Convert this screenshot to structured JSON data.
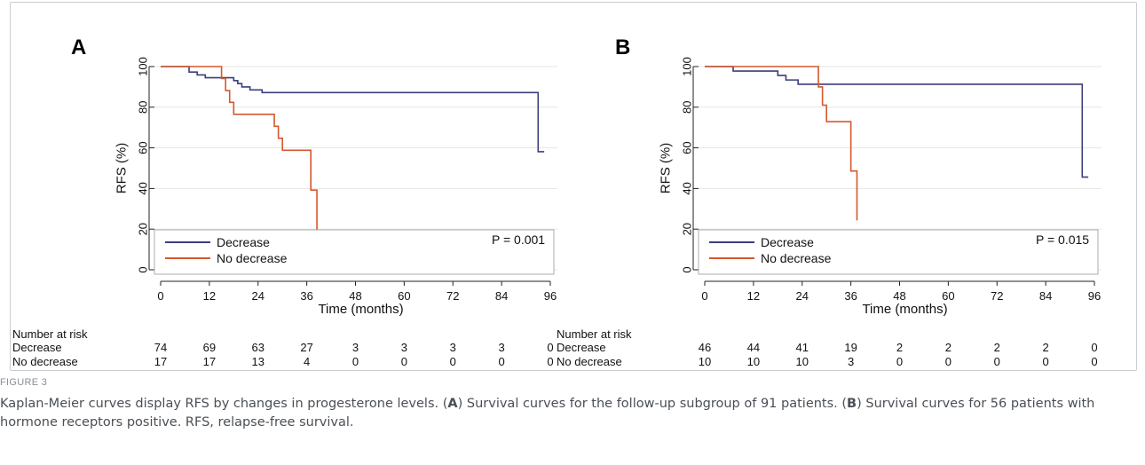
{
  "chart_data": [
    {
      "type": "line",
      "panel_label": "A",
      "ylabel": "RFS (%)",
      "xlabel": "Time (months)",
      "xlim": [
        0,
        96
      ],
      "ylim": [
        0,
        100
      ],
      "xticks": [
        "0",
        "12",
        "24",
        "36",
        "48",
        "60",
        "72",
        "84",
        "96"
      ],
      "yticks": [
        "0",
        "20",
        "40",
        "60",
        "80",
        "100"
      ],
      "grid": true,
      "pvalue": "P = 0.001",
      "legend_position": "bottom-left",
      "series": [
        {
          "name": "Decrease",
          "color": "#3c3f7a",
          "steps": [
            [
              0,
              100
            ],
            [
              7,
              97.3
            ],
            [
              9,
              95.9
            ],
            [
              11,
              94.5
            ],
            [
              18,
              93.1
            ],
            [
              19,
              91.6
            ],
            [
              20,
              90.0
            ],
            [
              22,
              88.5
            ],
            [
              25,
              87.2
            ],
            [
              93,
              58.1
            ],
            [
              94.5,
              58.1
            ]
          ]
        },
        {
          "name": "No decrease",
          "color": "#d4582c",
          "steps": [
            [
              0,
              100
            ],
            [
              15,
              94.1
            ],
            [
              16,
              88.2
            ],
            [
              17,
              82.4
            ],
            [
              18,
              76.5
            ],
            [
              28,
              70.6
            ],
            [
              29,
              64.7
            ],
            [
              30,
              58.8
            ],
            [
              37,
              39.2
            ],
            [
              38.5,
              19.6
            ]
          ]
        }
      ],
      "risk_table": {
        "title": "Number at risk",
        "times": [
          0,
          12,
          24,
          36,
          48,
          60,
          72,
          84,
          96
        ],
        "rows": [
          {
            "label": "Decrease",
            "values": [
              "74",
              "69",
              "63",
              "27",
              "3",
              "3",
              "3",
              "3",
              "0"
            ]
          },
          {
            "label": "No decrease",
            "values": [
              "17",
              "17",
              "13",
              "4",
              "0",
              "0",
              "0",
              "0",
              "0"
            ]
          }
        ]
      }
    },
    {
      "type": "line",
      "panel_label": "B",
      "ylabel": "RFS (%)",
      "xlabel": "Time (months)",
      "xlim": [
        0,
        96
      ],
      "ylim": [
        0,
        100
      ],
      "xticks": [
        "0",
        "12",
        "24",
        "36",
        "48",
        "60",
        "72",
        "84",
        "96"
      ],
      "yticks": [
        "0",
        "20",
        "40",
        "60",
        "80",
        "100"
      ],
      "grid": true,
      "pvalue": "P = 0.015",
      "legend_position": "bottom-left",
      "series": [
        {
          "name": "Decrease",
          "color": "#3c3f7a",
          "steps": [
            [
              0,
              100
            ],
            [
              7,
              97.8
            ],
            [
              18,
              95.6
            ],
            [
              20,
              93.4
            ],
            [
              23,
              91.3
            ],
            [
              93,
              45.6
            ],
            [
              94.5,
              45.6
            ]
          ]
        },
        {
          "name": "No decrease",
          "color": "#d4582c",
          "steps": [
            [
              0,
              100
            ],
            [
              28,
              90.0
            ],
            [
              29,
              81.0
            ],
            [
              30,
              72.9
            ],
            [
              36,
              48.6
            ],
            [
              37.5,
              24.3
            ]
          ]
        }
      ],
      "risk_table": {
        "title": "Number at risk",
        "times": [
          0,
          12,
          24,
          36,
          48,
          60,
          72,
          84,
          96
        ],
        "rows": [
          {
            "label": "Decrease",
            "values": [
              "46",
              "44",
              "41",
              "19",
              "2",
              "2",
              "2",
              "2",
              "0"
            ]
          },
          {
            "label": "No decrease",
            "values": [
              "10",
              "10",
              "10",
              "3",
              "0",
              "0",
              "0",
              "0",
              "0"
            ]
          }
        ]
      }
    }
  ],
  "figure": {
    "label": "FIGURE 3",
    "caption": {
      "intro": "Kaplan-Meier curves display RFS by changes in progesterone levels. (",
      "a_letter": "A",
      "a_text": ") Survival curves for the follow-up subgroup of 91 patients. (",
      "b_letter": "B",
      "b_text": ") Survival curves for 56 patients with hormone receptors positive. RFS, relapse-free survival."
    }
  }
}
